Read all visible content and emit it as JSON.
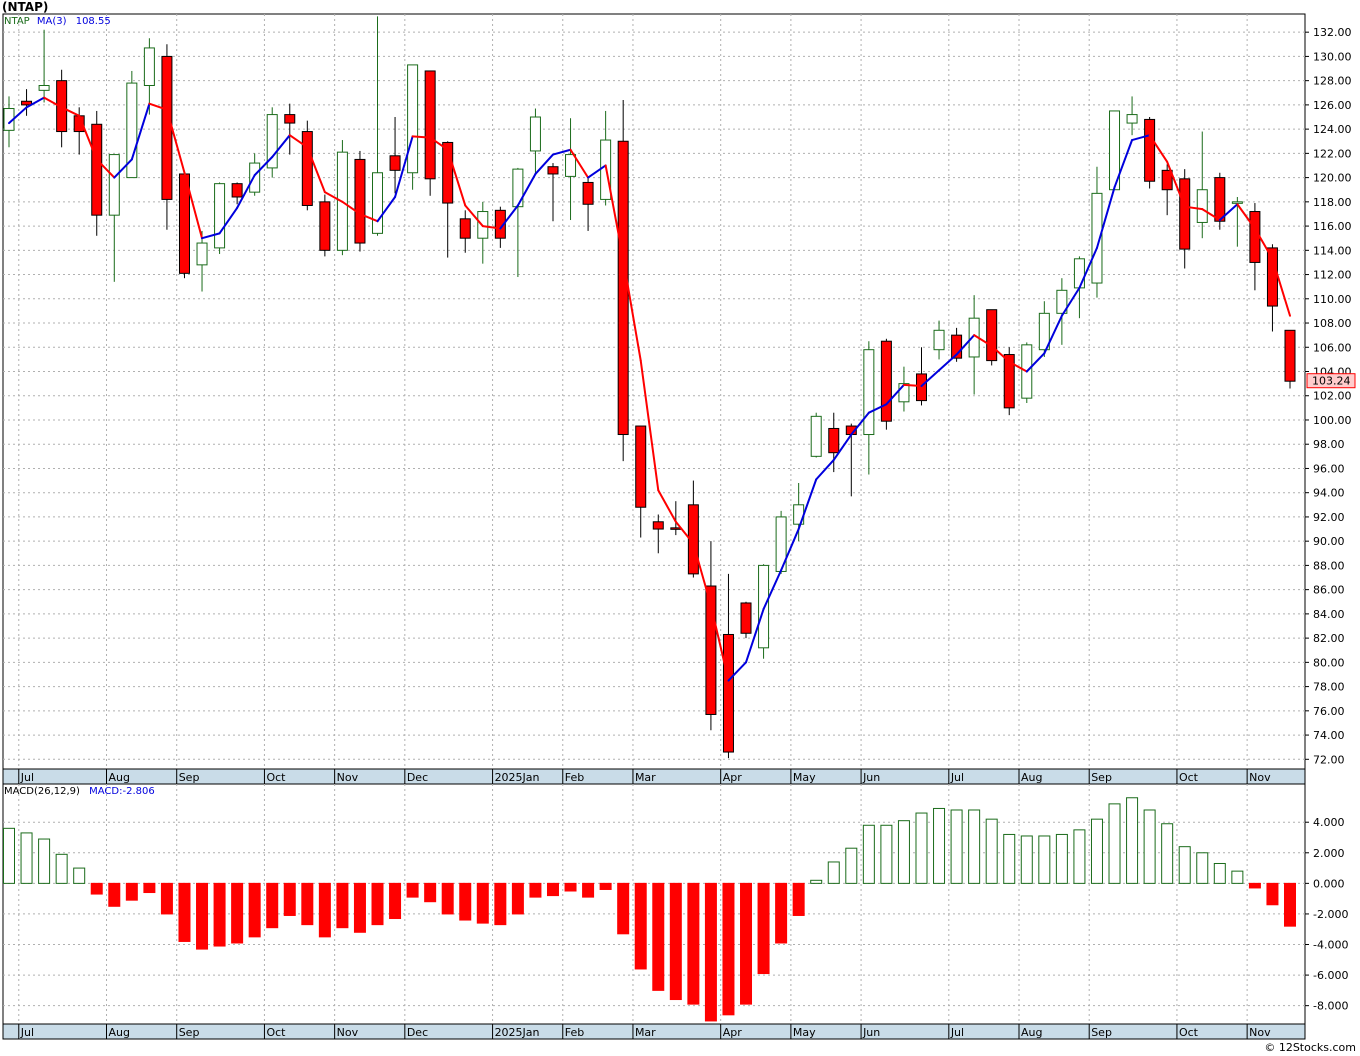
{
  "title": "(NTAP)",
  "legend_price": {
    "symbol": "NTAP",
    "ma_label": "MA(3)",
    "ma_value": "108.55"
  },
  "legend_macd": {
    "label": "MACD(26,12,9)",
    "value_label": "MACD:-2.806"
  },
  "last_price_label": "103.24",
  "credit": "© 12Stocks.com",
  "colors": {
    "up": "#1a6b1a",
    "down": "#ff0000",
    "ma_up": "#0000dd",
    "ma_down": "#ff0000",
    "grid": "#b0b0b0",
    "axis_band": "#c9dce8",
    "last_price_bg": "#ffcccc"
  },
  "chart_data": [
    {
      "type": "candlestick",
      "name": "price",
      "x_labels": [
        "Jul",
        "Aug",
        "Sep",
        "Oct",
        "Nov",
        "Dec",
        "2025Jan",
        "Feb",
        "Mar",
        "Apr",
        "May",
        "Jun",
        "Jul",
        "Aug",
        "Sep",
        "Oct",
        "Nov"
      ],
      "x_label_week_index": [
        1,
        6,
        10,
        15,
        19,
        23,
        28,
        32,
        36,
        41,
        45,
        49,
        54,
        58,
        62,
        67,
        71
      ],
      "y_ticks": [
        72,
        74,
        76,
        78,
        80,
        82,
        84,
        86,
        88,
        90,
        92,
        94,
        96,
        98,
        100,
        102,
        104,
        106,
        108,
        110,
        112,
        114,
        116,
        118,
        120,
        122,
        124,
        126,
        128,
        130,
        132
      ],
      "ylim": [
        71.2,
        133.5
      ],
      "candles": [
        [
          123.9,
          125.7,
          122.5,
          126.7
        ],
        [
          126.3,
          126.0,
          125.1,
          127.3
        ],
        [
          127.2,
          127.6,
          126.2,
          132.2
        ],
        [
          128.0,
          123.8,
          122.5,
          128.9
        ],
        [
          125.1,
          123.8,
          121.9,
          125.8
        ],
        [
          124.4,
          116.9,
          115.2,
          125.5
        ],
        [
          116.9,
          121.9,
          111.4,
          121.9
        ],
        [
          120.0,
          127.8,
          120.0,
          128.8
        ],
        [
          127.6,
          130.7,
          125.2,
          131.5
        ],
        [
          130.0,
          118.2,
          115.7,
          131.0
        ],
        [
          120.3,
          112.1,
          111.7,
          120.3
        ],
        [
          112.8,
          114.6,
          110.6,
          115.6
        ],
        [
          114.2,
          119.5,
          113.7,
          119.6
        ],
        [
          119.5,
          118.4,
          117.8,
          119.6
        ],
        [
          118.8,
          121.2,
          118.5,
          122.0
        ],
        [
          120.8,
          125.2,
          120.0,
          125.8
        ],
        [
          125.2,
          124.5,
          121.9,
          126.1
        ],
        [
          123.8,
          117.7,
          117.3,
          124.7
        ],
        [
          118.0,
          114.0,
          113.5,
          118.6
        ],
        [
          114.0,
          122.1,
          113.6,
          123.1
        ],
        [
          121.5,
          114.6,
          113.9,
          122.2
        ],
        [
          115.4,
          120.4,
          115.2,
          133.3
        ],
        [
          121.8,
          120.6,
          118.7,
          125.0
        ],
        [
          120.4,
          129.3,
          119.0,
          129.3
        ],
        [
          128.8,
          119.9,
          118.5,
          128.8
        ],
        [
          122.9,
          117.9,
          113.4,
          123.0
        ],
        [
          116.6,
          115.0,
          113.8,
          117.3
        ],
        [
          115.0,
          117.2,
          112.9,
          118.0
        ],
        [
          117.3,
          115.0,
          114.2,
          117.6
        ],
        [
          117.6,
          120.7,
          111.8,
          120.8
        ],
        [
          122.2,
          125.0,
          120.2,
          125.7
        ],
        [
          120.9,
          120.3,
          116.4,
          121.2
        ],
        [
          120.1,
          121.9,
          116.5,
          124.9
        ],
        [
          119.6,
          117.8,
          115.6,
          120.0
        ],
        [
          118.2,
          123.1,
          117.7,
          125.5
        ],
        [
          123.0,
          98.8,
          96.6,
          126.4
        ],
        [
          99.5,
          92.8,
          90.3,
          99.5
        ],
        [
          91.6,
          91.0,
          89.0,
          92.2
        ],
        [
          91.1,
          91.0,
          90.5,
          93.3
        ],
        [
          93.0,
          87.3,
          87.0,
          95.0
        ],
        [
          86.3,
          75.7,
          74.4,
          90.0
        ],
        [
          82.3,
          72.6,
          72.1,
          87.3
        ],
        [
          84.9,
          82.4,
          82.0,
          85.0
        ],
        [
          81.2,
          88.0,
          80.3,
          88.1
        ],
        [
          87.5,
          92.0,
          87.3,
          92.5
        ],
        [
          91.4,
          93.0,
          90.0,
          94.8
        ],
        [
          97.0,
          100.3,
          96.9,
          100.6
        ],
        [
          99.3,
          97.3,
          95.7,
          100.6
        ],
        [
          99.5,
          98.8,
          93.7,
          99.7
        ],
        [
          98.8,
          105.8,
          95.5,
          106.5
        ],
        [
          106.5,
          99.9,
          99.2,
          106.7
        ],
        [
          101.5,
          103.0,
          100.7,
          104.4
        ],
        [
          103.8,
          101.6,
          101.2,
          106.0
        ],
        [
          105.8,
          107.4,
          105.0,
          108.2
        ],
        [
          107.0,
          105.1,
          104.8,
          107.6
        ],
        [
          105.2,
          108.4,
          102.1,
          110.3
        ],
        [
          109.1,
          104.9,
          104.5,
          109.1
        ],
        [
          105.4,
          101.0,
          100.4,
          106.0
        ],
        [
          101.8,
          106.2,
          101.4,
          106.4
        ],
        [
          105.8,
          108.8,
          105.2,
          109.8
        ],
        [
          108.8,
          110.7,
          106.2,
          111.7
        ],
        [
          110.9,
          113.3,
          108.4,
          113.5
        ],
        [
          111.3,
          118.7,
          110.1,
          120.9
        ],
        [
          119.0,
          125.5,
          119.0,
          125.5
        ],
        [
          124.5,
          125.2,
          123.5,
          126.7
        ],
        [
          124.8,
          119.7,
          119.1,
          125.0
        ],
        [
          120.6,
          119.0,
          116.9,
          121.1
        ],
        [
          119.9,
          114.1,
          112.5,
          120.7
        ],
        [
          116.3,
          119.0,
          115.0,
          123.8
        ],
        [
          120.0,
          116.4,
          115.7,
          120.4
        ],
        [
          117.9,
          118.0,
          114.3,
          118.4
        ],
        [
          117.2,
          113.0,
          110.7,
          117.9
        ],
        [
          114.2,
          109.4,
          107.3,
          114.5
        ],
        [
          107.4,
          103.2,
          102.6,
          107.4
        ]
      ],
      "ma": [
        124.5,
        125.8,
        126.6,
        125.8,
        125.1,
        121.5,
        120.0,
        121.5,
        126.1,
        125.6,
        120.4,
        115.0,
        115.4,
        117.5,
        120.2,
        121.7,
        123.5,
        122.5,
        118.8,
        118.0,
        117.0,
        116.4,
        118.4,
        123.4,
        123.3,
        122.3,
        117.7,
        116.0,
        115.8,
        117.7,
        120.3,
        121.9,
        122.3,
        120.0,
        121.0,
        113.3,
        104.9,
        94.2,
        91.6,
        89.8,
        84.7,
        78.5,
        80.0,
        84.4,
        87.6,
        91.0,
        95.1,
        96.7,
        98.8,
        100.6,
        101.3,
        102.9,
        102.8,
        104.1,
        105.4,
        107.0,
        106.1,
        104.8,
        104.0,
        105.5,
        108.6,
        110.9,
        114.2,
        119.2,
        123.1,
        123.5,
        121.3,
        117.6,
        117.4,
        116.5,
        117.8,
        115.8,
        113.3,
        108.6
      ]
    },
    {
      "type": "bar",
      "name": "macd",
      "y_ticks": [
        -8,
        -6,
        -4,
        -2,
        0,
        2,
        4
      ],
      "y_tick_labels": [
        "-8.000",
        "-6.000",
        "-4.000",
        "-2.000",
        "0.000",
        "2.000",
        "4.000"
      ],
      "ylim": [
        -9.2,
        6.5
      ],
      "values": [
        3.6,
        3.3,
        2.9,
        1.9,
        1.0,
        -0.7,
        -1.5,
        -1.1,
        -0.6,
        -2.0,
        -3.8,
        -4.3,
        -4.1,
        -3.9,
        -3.5,
        -2.9,
        -2.1,
        -2.7,
        -3.5,
        -2.9,
        -3.2,
        -2.7,
        -2.3,
        -0.9,
        -1.2,
        -2.0,
        -2.4,
        -2.6,
        -2.7,
        -2.0,
        -0.9,
        -0.8,
        -0.5,
        -0.9,
        -0.4,
        -3.3,
        -5.6,
        -7.0,
        -7.6,
        -7.9,
        -9.0,
        -8.6,
        -7.9,
        -5.9,
        -3.9,
        -2.1,
        0.2,
        1.4,
        2.3,
        3.8,
        3.8,
        4.1,
        4.6,
        4.9,
        4.8,
        4.8,
        4.2,
        3.2,
        3.1,
        3.1,
        3.2,
        3.5,
        4.2,
        5.2,
        5.6,
        4.8,
        3.9,
        2.4,
        2.0,
        1.3,
        0.8,
        -0.3,
        -1.4,
        -2.8
      ]
    }
  ]
}
